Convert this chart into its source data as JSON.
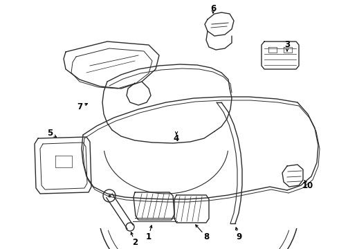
{
  "bg_color": "#ffffff",
  "line_color": "#2a2a2a",
  "label_color": "#000000",
  "line_width": 1.0,
  "fig_width": 4.9,
  "fig_height": 3.6,
  "dpi": 100
}
